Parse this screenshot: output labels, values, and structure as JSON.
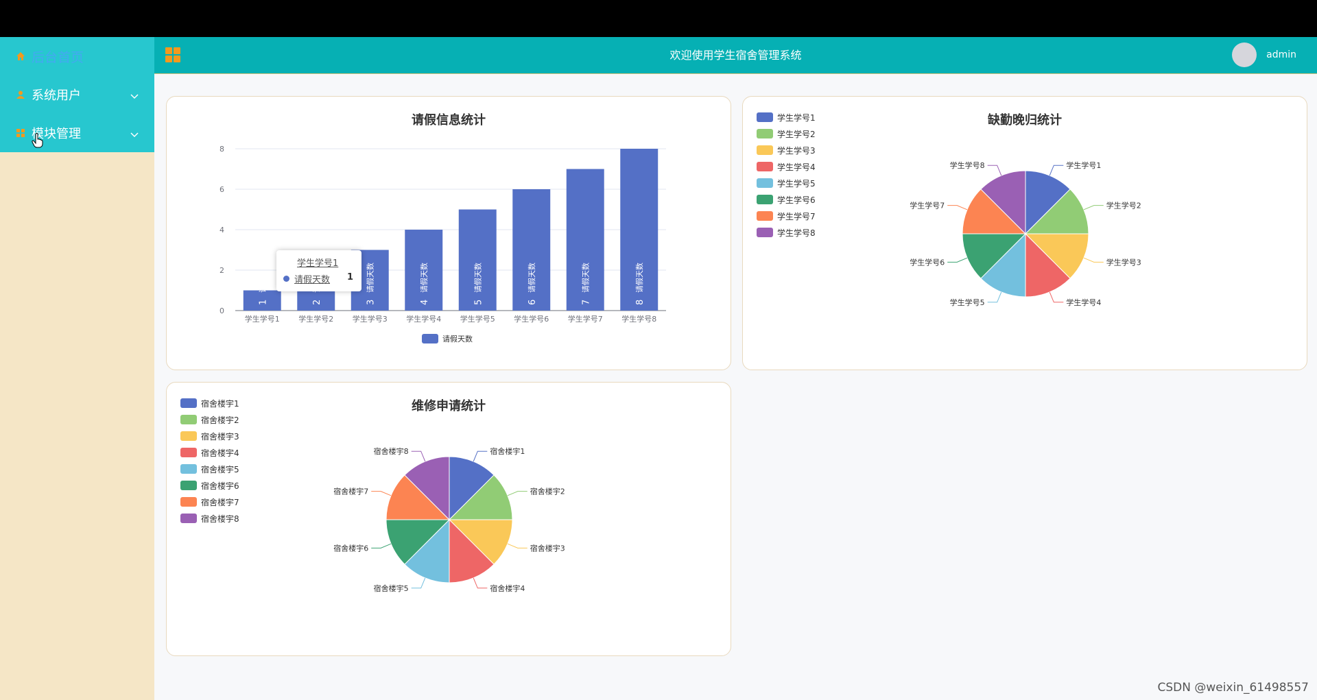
{
  "app": {
    "title": "欢迎使用学生宿舍管理系统",
    "username": "admin"
  },
  "sidebar": {
    "items": [
      {
        "label": "后台首页",
        "icon": "home-icon",
        "active": true
      },
      {
        "label": "系统用户",
        "icon": "user-icon",
        "expandable": true
      },
      {
        "label": "模块管理",
        "icon": "grid-icon",
        "expandable": true
      }
    ]
  },
  "colors": {
    "palette": [
      "#5470c6",
      "#91cc75",
      "#fac858",
      "#ee6666",
      "#73c0de",
      "#3ba272",
      "#fc8452",
      "#9a60b4"
    ],
    "header": "#06b0b4",
    "sidebar_menu": "#27c7cf",
    "sidebar_bg": "#f5e6c6"
  },
  "tooltip": {
    "category": "学生学号1",
    "series": "请假天数",
    "value": "1"
  },
  "chart_data": [
    {
      "type": "bar",
      "title": "请假信息统计",
      "categories": [
        "学生学号1",
        "学生学号2",
        "学生学号3",
        "学生学号4",
        "学生学号5",
        "学生学号6",
        "学生学号7",
        "学生学号8"
      ],
      "series": [
        {
          "name": "请假天数",
          "values": [
            1,
            2,
            3,
            4,
            5,
            6,
            7,
            8
          ]
        }
      ],
      "y_ticks": [
        "0",
        "2",
        "4",
        "6",
        "8"
      ],
      "ylim": [
        0,
        8
      ],
      "legend": "bottom",
      "bar_labels": [
        "1",
        "2",
        "3",
        "4",
        "5",
        "6",
        "7",
        "8"
      ]
    },
    {
      "type": "pie",
      "title": "缺勤晚归统计",
      "labels": [
        "学生学号1",
        "学生学号2",
        "学生学号3",
        "学生学号4",
        "学生学号5",
        "学生学号6",
        "学生学号7",
        "学生学号8"
      ],
      "values": [
        1,
        1,
        1,
        1,
        1,
        1,
        1,
        1
      ],
      "legend": "top-left"
    },
    {
      "type": "pie",
      "title": "维修申请统计",
      "labels": [
        "宿舍楼宇1",
        "宿舍楼宇2",
        "宿舍楼宇3",
        "宿舍楼宇4",
        "宿舍楼宇5",
        "宿舍楼宇6",
        "宿舍楼宇7",
        "宿舍楼宇8"
      ],
      "values": [
        1,
        1,
        1,
        1,
        1,
        1,
        1,
        1
      ],
      "legend": "top-left"
    }
  ],
  "watermark": "CSDN @weixin_61498557"
}
